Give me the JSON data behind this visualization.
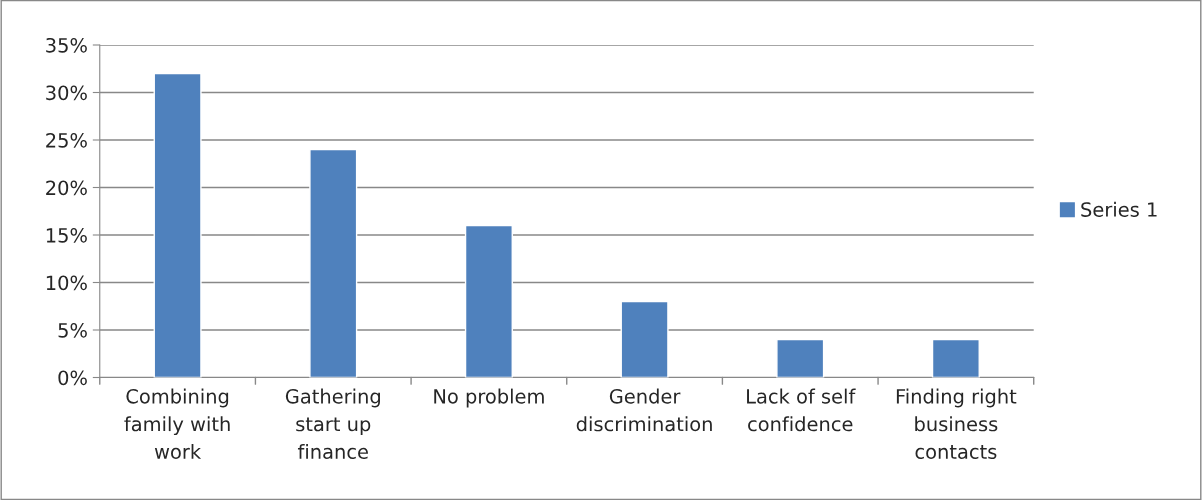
{
  "chart_data": {
    "type": "bar",
    "categories": [
      "Combining\nfamily with\nwork",
      "Gathering\nstart up\nfinance",
      "No problem",
      "Gender\ndiscrimination",
      "Lack of self\nconfidence",
      "Finding right\nbusiness\ncontacts"
    ],
    "series": [
      {
        "name": "Series 1",
        "color": "#4f81bd",
        "values": [
          32,
          24,
          16,
          8,
          4,
          4
        ]
      }
    ],
    "ylim": [
      0,
      35
    ],
    "yticks": [
      {
        "value": 0,
        "label": "0%"
      },
      {
        "value": 5,
        "label": "5%"
      },
      {
        "value": 10,
        "label": "10%"
      },
      {
        "value": 15,
        "label": "15%"
      },
      {
        "value": 20,
        "label": "20%"
      },
      {
        "value": 25,
        "label": "25%"
      },
      {
        "value": 30,
        "label": "30%"
      },
      {
        "value": 35,
        "label": "35%"
      }
    ],
    "grid": "y",
    "legend": "right"
  }
}
